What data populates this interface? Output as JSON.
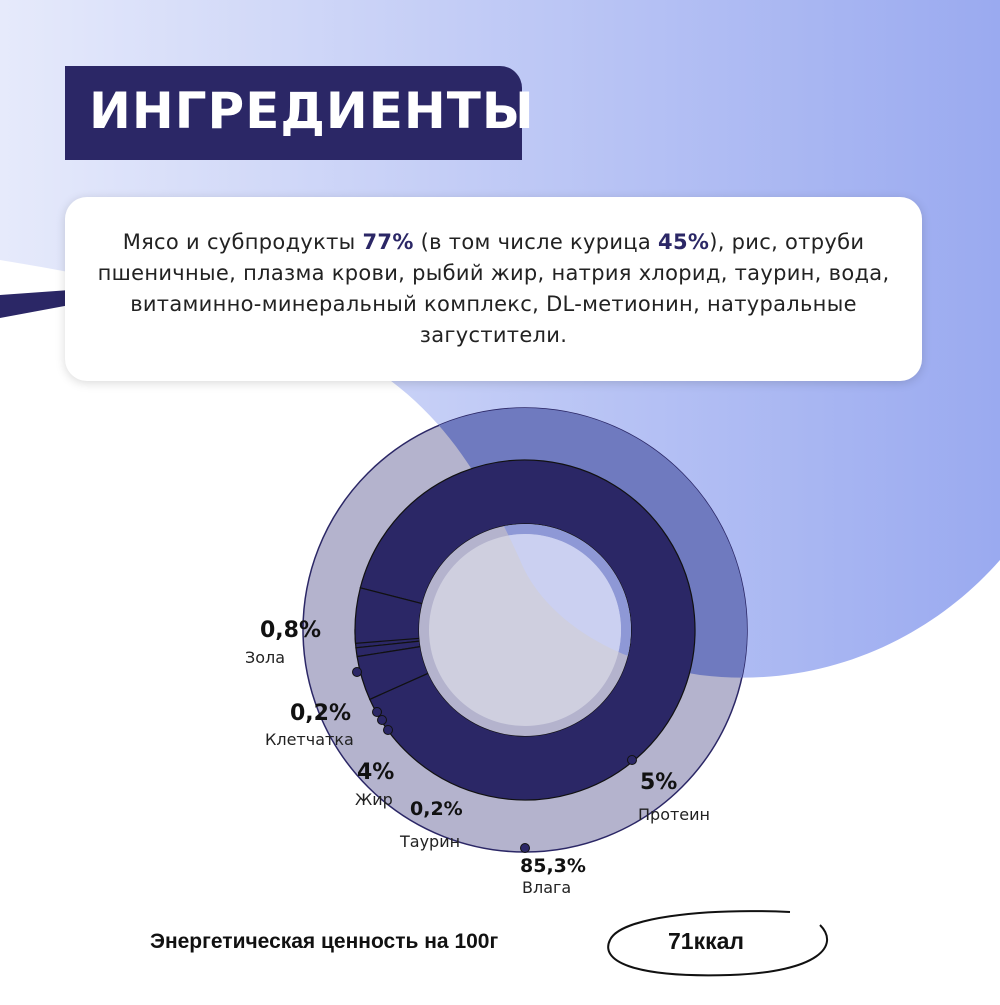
{
  "header": {
    "title": "ИНГРЕДИЕНТЫ"
  },
  "ingredients": {
    "part1": "Мясо и субпродукты ",
    "meat_pct": "77%",
    "part2": " (в том числе курица ",
    "chicken_pct": "45%",
    "part3": "), рис, отруби пшеничные, плазма крови, рыбий жир, натрия хлорид, таурин, вода, витаминно-минеральный комплекс, DL-метионин, натуральные загустители."
  },
  "chart_data": {
    "type": "pie",
    "series": [
      {
        "name": "Влага",
        "label": "85,3%",
        "value": 85.3
      },
      {
        "name": "Протеин",
        "label": "5%",
        "value": 5
      },
      {
        "name": "Жир",
        "label": "4%",
        "value": 4
      },
      {
        "name": "Зола",
        "label": "0,8%",
        "value": 0.8
      },
      {
        "name": "Клетчатка",
        "label": "0,2%",
        "value": 0.2
      },
      {
        "name": "Таурин",
        "label": "0,2%",
        "value": 0.2
      }
    ]
  },
  "energy": {
    "label": "Энергетическая ценность на 100г",
    "value": "71ккал"
  },
  "colors": {
    "navy": "#2b2766",
    "blob": "#9aaaf0",
    "ring_light": "#b4b3cd",
    "ring_blue": "#6f7abf"
  }
}
